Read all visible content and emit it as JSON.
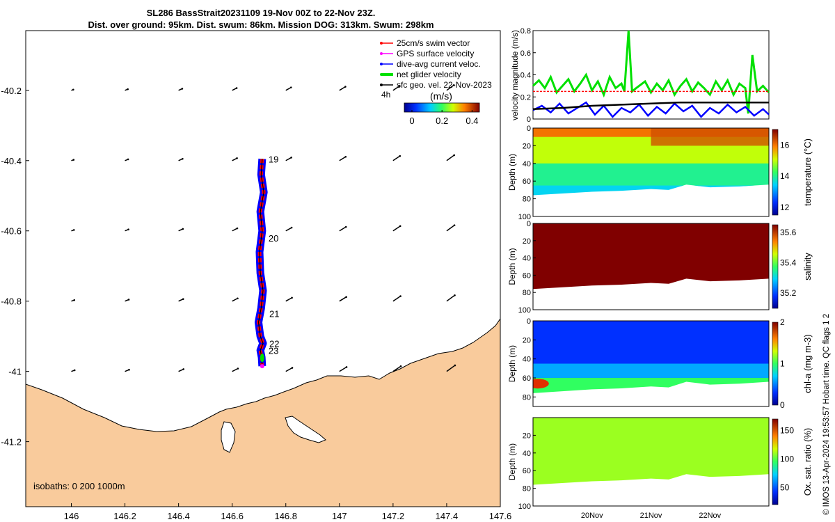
{
  "title": {
    "line1": "SL286 BassStrait20231109 19-Nov 00Z to 22-Nov 23Z.",
    "line2": "Dist. over ground: 95km. Dist. swum: 86km. Mission DOG: 313km. Swum: 298km"
  },
  "copyright": "© IMOS 13-Apr-2024 19:53:57 Hobart time. QC flags 1  2",
  "colors": {
    "land": "#f9cb9c",
    "track_red": "#ff0000",
    "track_blue": "#0000ff",
    "green": "#00e000",
    "magenta": "#ff00ff",
    "black": "#000000"
  },
  "map": {
    "isobaths_label": "isobaths: 0   200  1000m",
    "day_labels": [
      "19",
      "20",
      "21",
      "22",
      "23"
    ],
    "legend": [
      {
        "label": "25cm/s swim vector",
        "color": "#ff0000"
      },
      {
        "label": "GPS surface velocity",
        "color": "#ff00ff"
      },
      {
        "label": "dive-avg current veloc.",
        "color": "#0000ff"
      },
      {
        "label": "net glider velocity",
        "color": "#00e000"
      },
      {
        "label": "sfc geo. vel. 22-Nov-2023",
        "color": "#000000"
      }
    ],
    "legend_note": "4h",
    "colorbar": {
      "label": "(m/s)",
      "ticks": [
        "0",
        "0.2",
        "0.4"
      ]
    },
    "chart_data": {
      "type": "scatter",
      "xlim": [
        145.83,
        147.6
      ],
      "ylim": [
        -41.385,
        -40.03
      ],
      "x_ticks": [
        "146",
        "146.2",
        "146.4",
        "146.6",
        "146.8",
        "147",
        "147.2",
        "147.4",
        "147.6"
      ],
      "y_ticks": [
        "-40.2",
        "-40.4",
        "-40.6",
        "-40.8",
        "-41",
        "-41.2"
      ],
      "track": [
        {
          "lon": 146.712,
          "lat": -40.395
        },
        {
          "lon": 146.708,
          "lat": -40.44
        },
        {
          "lon": 146.718,
          "lat": -40.49
        },
        {
          "lon": 146.705,
          "lat": -40.545
        },
        {
          "lon": 146.712,
          "lat": -40.6
        },
        {
          "lon": 146.702,
          "lat": -40.66
        },
        {
          "lon": 146.705,
          "lat": -40.72
        },
        {
          "lon": 146.715,
          "lat": -40.77
        },
        {
          "lon": 146.708,
          "lat": -40.82
        },
        {
          "lon": 146.698,
          "lat": -40.86
        },
        {
          "lon": 146.705,
          "lat": -40.9
        },
        {
          "lon": 146.715,
          "lat": -40.92
        },
        {
          "lon": 146.705,
          "lat": -40.94
        },
        {
          "lon": 146.71,
          "lat": -40.96
        },
        {
          "lon": 146.712,
          "lat": -40.985
        }
      ],
      "day_positions": [
        {
          "label": "19",
          "lon": 146.712,
          "lat": -40.395
        },
        {
          "label": "20",
          "lon": 146.712,
          "lat": -40.62
        },
        {
          "label": "21",
          "lon": 146.715,
          "lat": -40.835
        },
        {
          "label": "22",
          "lon": 146.715,
          "lat": -40.92
        },
        {
          "label": "23",
          "lon": 146.712,
          "lat": -40.94
        }
      ]
    }
  },
  "panels": {
    "x_ticks": [
      "20Nov",
      "21Nov",
      "22Nov"
    ],
    "velocity": {
      "ylabel": "velocity magnitude (m/s)",
      "chart_data": {
        "type": "line",
        "xlim": [
          19.0,
          23.0
        ],
        "ylim": [
          0,
          0.8
        ],
        "y_ticks": [
          "0",
          "0.2",
          "0.4",
          "0.6",
          "0.8"
        ],
        "series": [
          {
            "name": "net glider velocity",
            "color": "#00e000",
            "x": [
              19.0,
              19.1,
              19.2,
              19.3,
              19.4,
              19.5,
              19.6,
              19.7,
              19.8,
              19.9,
              20.0,
              20.1,
              20.2,
              20.3,
              20.4,
              20.5,
              20.55,
              20.62,
              20.68,
              20.75,
              20.9,
              21.0,
              21.1,
              21.2,
              21.3,
              21.4,
              21.5,
              21.6,
              21.7,
              21.8,
              21.9,
              22.0,
              22.1,
              22.2,
              22.3,
              22.4,
              22.5,
              22.6,
              22.65,
              22.72,
              22.8,
              22.9,
              23.0
            ],
            "y": [
              0.3,
              0.35,
              0.28,
              0.38,
              0.24,
              0.3,
              0.36,
              0.25,
              0.32,
              0.4,
              0.26,
              0.34,
              0.22,
              0.38,
              0.28,
              0.32,
              0.25,
              0.8,
              0.25,
              0.28,
              0.34,
              0.24,
              0.32,
              0.26,
              0.35,
              0.22,
              0.3,
              0.36,
              0.25,
              0.33,
              0.28,
              0.22,
              0.34,
              0.26,
              0.35,
              0.22,
              0.32,
              0.28,
              0.05,
              0.58,
              0.25,
              0.3,
              0.24
            ]
          },
          {
            "name": "dive-avg current veloc.",
            "color": "#0000ff",
            "x": [
              19.0,
              19.15,
              19.3,
              19.45,
              19.6,
              19.75,
              19.9,
              20.05,
              20.2,
              20.35,
              20.5,
              20.65,
              20.8,
              20.95,
              21.1,
              21.25,
              21.4,
              21.55,
              21.7,
              21.85,
              22.0,
              22.15,
              22.3,
              22.45,
              22.6,
              22.75,
              22.9,
              23.0
            ],
            "y": [
              0.08,
              0.12,
              0.06,
              0.14,
              0.05,
              0.1,
              0.15,
              0.04,
              0.12,
              0.02,
              0.1,
              0.06,
              0.13,
              0.03,
              0.11,
              0.05,
              0.14,
              0.07,
              0.12,
              0.02,
              0.1,
              0.05,
              0.13,
              0.06,
              0.11,
              0.03,
              0.09,
              0.04
            ]
          },
          {
            "name": "sfc geo. vel.",
            "color": "#000000",
            "x": [
              19.0,
              19.5,
              20.0,
              20.5,
              21.0,
              21.5,
              22.0,
              22.5,
              23.0
            ],
            "y": [
              0.09,
              0.1,
              0.12,
              0.13,
              0.14,
              0.15,
              0.15,
              0.15,
              0.15
            ]
          },
          {
            "name": "25cm/s swim vector",
            "color": "#ff0000",
            "x": [
              19.0,
              23.0
            ],
            "y": [
              0.25,
              0.25
            ]
          }
        ]
      }
    },
    "profiles": [
      {
        "id": "temperature",
        "label": "temperature (°C)",
        "cticks": [
          "12",
          "14",
          "16"
        ],
        "clim": [
          11.5,
          17
        ],
        "depth_ticks": [
          "0",
          "20",
          "40",
          "60",
          "80",
          "100"
        ],
        "chart_data": {
          "type": "heatmap",
          "xlim": [
            19.0,
            23.0
          ],
          "ylim_depth": [
            0,
            100
          ],
          "bottom_depth": {
            "x": [
              19.0,
              19.5,
              20.0,
              20.5,
              21.0,
              21.3,
              21.6,
              22.0,
              22.5,
              23.0
            ],
            "depth": [
              76,
              74,
              72,
              71,
              69,
              70,
              64,
              67,
              66,
              64
            ]
          },
          "layers": [
            {
              "from": 0,
              "to": 10,
              "value": 16
            },
            {
              "from": 10,
              "to": 40,
              "value": 15
            },
            {
              "from": 40,
              "to": 65,
              "value": 14
            },
            {
              "from": 65,
              "to": 80,
              "value": 13.5
            }
          ]
        }
      },
      {
        "id": "salinity",
        "label": "salinity",
        "cticks": [
          "35.2",
          "35.4",
          "35.6"
        ],
        "clim": [
          35.1,
          35.65
        ],
        "depth_ticks": [
          "0",
          "20",
          "40",
          "60",
          "80",
          "100"
        ],
        "chart_data": {
          "type": "heatmap",
          "xlim": [
            19.0,
            23.0
          ],
          "ylim_depth": [
            0,
            100
          ],
          "bottom_depth": {
            "x": [
              19.0,
              19.5,
              20.0,
              20.5,
              21.0,
              21.3,
              21.6,
              22.0,
              22.5,
              23.0
            ],
            "depth": [
              76,
              74,
              72,
              71,
              69,
              70,
              64,
              67,
              66,
              64
            ]
          },
          "layers": [
            {
              "from": 0,
              "to": 80,
              "value": 35.65
            }
          ]
        }
      },
      {
        "id": "chla",
        "label": "chl-a (mg m-3)",
        "cticks": [
          "0",
          "1",
          "2"
        ],
        "clim": [
          0,
          2
        ],
        "depth_ticks": [
          "0",
          "20",
          "40",
          "60",
          "80"
        ],
        "chart_data": {
          "type": "heatmap",
          "xlim": [
            19.0,
            23.0
          ],
          "ylim_depth": [
            0,
            90
          ],
          "bottom_depth": {
            "x": [
              19.0,
              19.5,
              20.0,
              20.5,
              21.0,
              21.3,
              21.6,
              22.0,
              22.5,
              23.0
            ],
            "depth": [
              76,
              74,
              72,
              71,
              69,
              70,
              64,
              67,
              66,
              64
            ]
          },
          "layers": [
            {
              "from": 0,
              "to": 45,
              "value": 0.3
            },
            {
              "from": 45,
              "to": 60,
              "value": 0.6
            },
            {
              "from": 60,
              "to": 80,
              "value": 1.0
            }
          ]
        }
      },
      {
        "id": "oxygen",
        "label": "Ox. sat. ratio (%)",
        "cticks": [
          "50",
          "100",
          "150"
        ],
        "clim": [
          20,
          170
        ],
        "depth_ticks": [
          "20",
          "40",
          "60",
          "80",
          "100"
        ],
        "chart_data": {
          "type": "heatmap",
          "xlim": [
            19.0,
            23.0
          ],
          "ylim_depth": [
            0,
            100
          ],
          "bottom_depth": {
            "x": [
              19.0,
              19.5,
              20.0,
              20.5,
              21.0,
              21.3,
              21.6,
              22.0,
              22.5,
              23.0
            ],
            "depth": [
              76,
              74,
              72,
              71,
              69,
              70,
              64,
              67,
              66,
              64
            ]
          },
          "layers": [
            {
              "from": 0,
              "to": 80,
              "value": 110
            }
          ]
        }
      }
    ]
  }
}
